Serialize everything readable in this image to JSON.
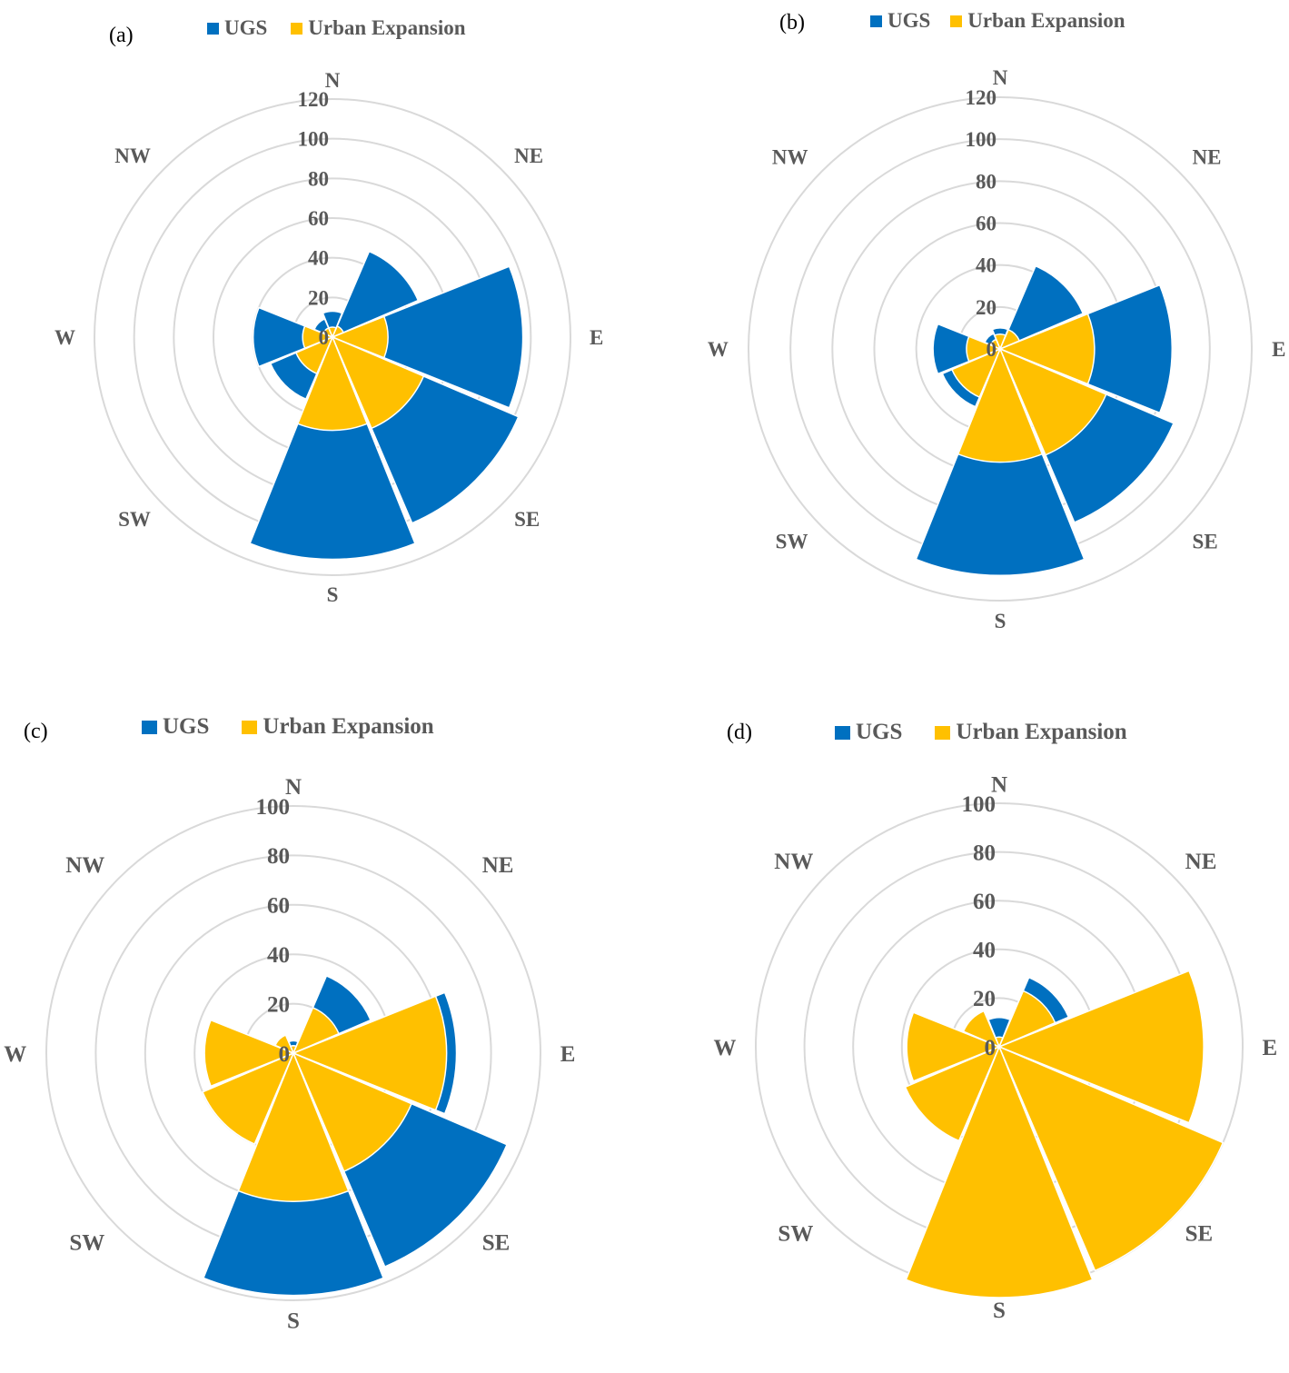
{
  "colors": {
    "ugs": "#0070C0",
    "urban": "#FFC000",
    "grid": "#D9D9D9",
    "text": "#595959"
  },
  "chart_data": [
    {
      "type": "radar-area",
      "panel_label": "(a)",
      "legend": [
        "UGS",
        "Urban Expansion"
      ],
      "categories": [
        "N",
        "NE",
        "E",
        "SE",
        "S",
        "SW",
        "W",
        "NW"
      ],
      "radial_ticks": [
        "0",
        "20",
        "40",
        "60",
        "80",
        "100",
        "120"
      ],
      "rmax": 120,
      "series": [
        {
          "name": "UGS",
          "values": [
            13,
            47,
            96,
            102,
            112,
            34,
            40,
            10
          ]
        },
        {
          "name": "Urban Expansion",
          "values": [
            5,
            6,
            28,
            50,
            47,
            20,
            15,
            5
          ]
        }
      ]
    },
    {
      "type": "radar-area",
      "panel_label": "(b)",
      "legend": [
        "UGS",
        "Urban Expansion"
      ],
      "categories": [
        "N",
        "NE",
        "E",
        "SE",
        "S",
        "SW",
        "W",
        "NW"
      ],
      "radial_ticks": [
        "0",
        "20",
        "40",
        "60",
        "80",
        "100",
        "120"
      ],
      "rmax": 120,
      "series": [
        {
          "name": "UGS",
          "values": [
            10,
            43,
            82,
            90,
            108,
            30,
            32,
            8
          ]
        },
        {
          "name": "Urban Expansion",
          "values": [
            7,
            10,
            45,
            55,
            54,
            25,
            16,
            5
          ]
        }
      ]
    },
    {
      "type": "radar-area",
      "panel_label": "(c)",
      "legend": [
        "UGS",
        "Urban Expansion"
      ],
      "categories": [
        "N",
        "NE",
        "E",
        "SE",
        "S",
        "SW",
        "W",
        "NW"
      ],
      "radial_ticks": [
        "0",
        "20",
        "40",
        "60",
        "80",
        "100"
      ],
      "rmax": 100,
      "series": [
        {
          "name": "UGS",
          "values": [
            5,
            34,
            66,
            94,
            98,
            40,
            36,
            5
          ]
        },
        {
          "name": "Urban Expansion",
          "values": [
            3,
            20,
            62,
            52,
            60,
            40,
            36,
            8
          ]
        }
      ]
    },
    {
      "type": "radar-area",
      "panel_label": "(d)",
      "legend": [
        "UGS",
        "Urban Expansion"
      ],
      "categories": [
        "N",
        "NE",
        "E",
        "SE",
        "S",
        "SW",
        "W",
        "NW"
      ],
      "radial_ticks": [
        "0",
        "20",
        "40",
        "60",
        "80",
        "100"
      ],
      "rmax": 100,
      "series": [
        {
          "name": "UGS",
          "values": [
            12,
            31,
            6,
            4,
            3,
            3,
            2,
            6
          ]
        },
        {
          "name": "Urban Expansion",
          "values": [
            4,
            25,
            84,
            100,
            103,
            42,
            38,
            16
          ]
        }
      ]
    }
  ]
}
